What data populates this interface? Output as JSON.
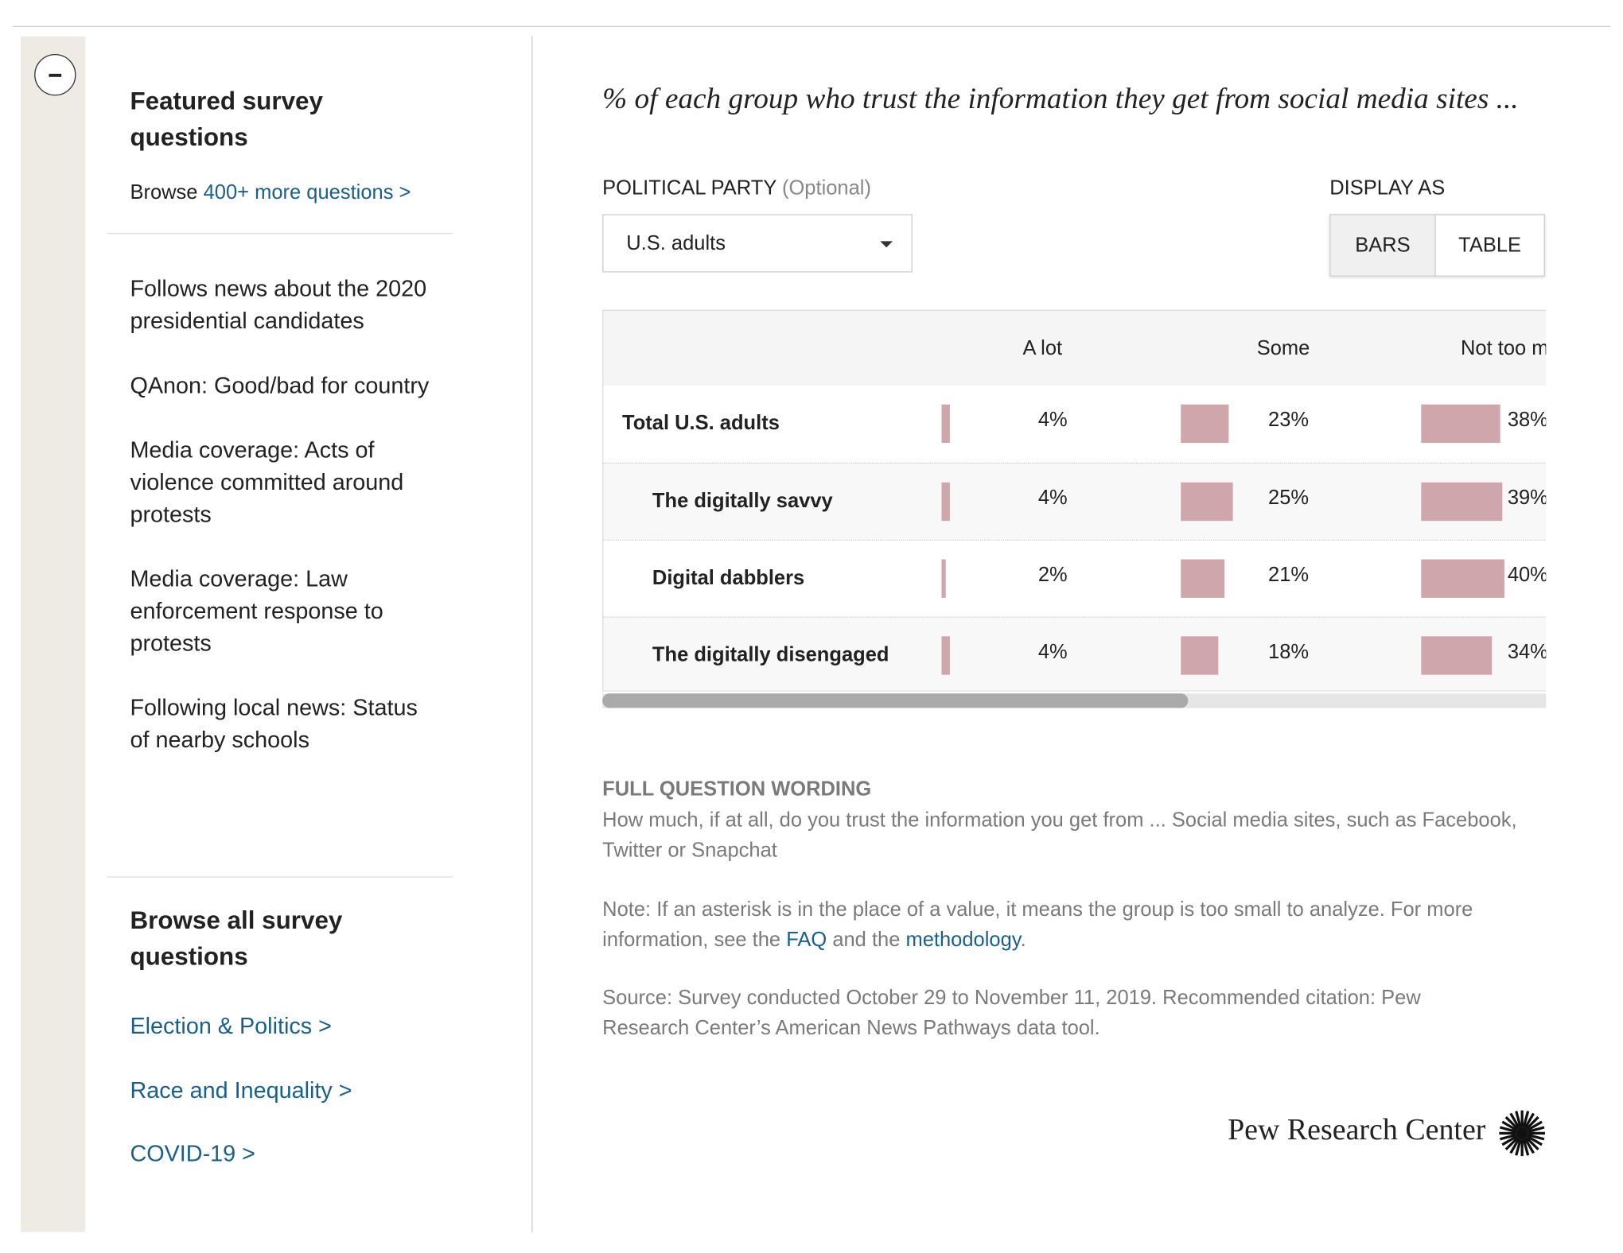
{
  "sidebar": {
    "featured_title": "Featured survey questions",
    "browse_prefix": "Browse",
    "browse_link": "400+ more questions >",
    "featured_items": [
      "Follows news about the 2020 presidential candidates",
      "QAnon: Good/bad for country",
      "Media coverage: Acts of violence committed around protests",
      "Media coverage: Law enforcement response to protests",
      "Following local news: Status of nearby schools"
    ],
    "browse_all_title": "Browse all survey questions",
    "topic_links": [
      "Election & Politics >",
      "Race and Inequality >",
      "COVID-19 >"
    ]
  },
  "main": {
    "title": "% of each group who trust the information they get from social media sites ...",
    "filter_label": "POLITICAL PARTY",
    "filter_optional": "(Optional)",
    "filter_value": "U.S. adults",
    "display_label": "DISPLAY AS",
    "display_options": [
      "BARS",
      "TABLE"
    ],
    "table": {
      "columns": [
        "A lot",
        "Some",
        "Not too m"
      ],
      "bar_color": "#d0a6ad",
      "rows": [
        {
          "label": "Total U.S. adults",
          "values": [
            4,
            23,
            38
          ],
          "value_labels": [
            "4%",
            "23%",
            "38%"
          ]
        },
        {
          "label": "The digitally savvy",
          "values": [
            4,
            25,
            39
          ],
          "value_labels": [
            "4%",
            "25%",
            "39%"
          ]
        },
        {
          "label": "Digital dabblers",
          "values": [
            2,
            21,
            40
          ],
          "value_labels": [
            "2%",
            "21%",
            "40%"
          ]
        },
        {
          "label": "The digitally disengaged",
          "values": [
            4,
            18,
            34
          ],
          "value_labels": [
            "4%",
            "18%",
            "34%"
          ]
        }
      ]
    },
    "wording_title": "FULL QUESTION WORDING",
    "wording": "How much, if at all, do you trust the information you get from ... Social media sites, such as Facebook, Twitter or Snapchat",
    "note": [
      "Note: If an asterisk is in the place of a value, it means the group is too small to analyze. For more information, see the",
      "FAQ",
      "and the",
      "methodology",
      "."
    ],
    "source": "Source: Survey conducted October 29 to November 11, 2019. Recommended citation: Pew Research Center’s American News Pathways data tool.",
    "logo": "Pew Research Center"
  }
}
